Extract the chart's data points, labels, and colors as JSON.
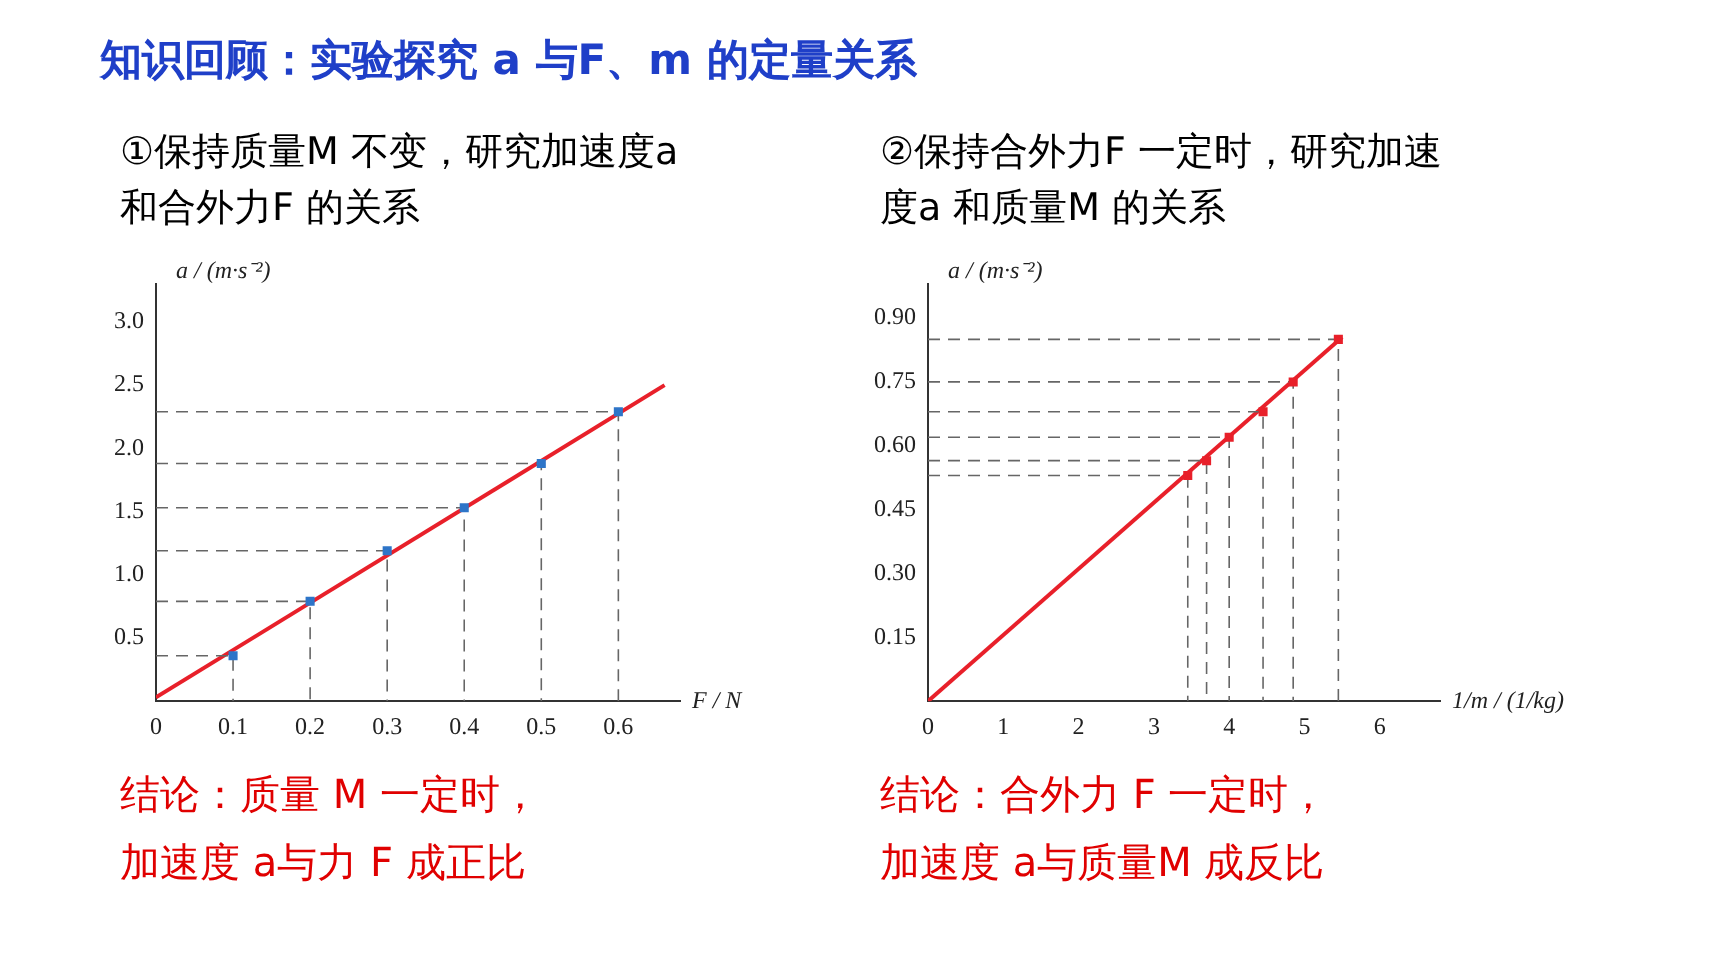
{
  "chart_data": [
    {
      "type": "scatter",
      "title": "知识回顾：实验探究 a 与F、m 的定量关系",
      "subtitle": "①保持质量M 不变，研究加速度a 和合外力F 的关系",
      "xlabel": "F / N",
      "ylabel": "a / (m·s⁻²)",
      "xlim": [
        0,
        0.68
      ],
      "ylim": [
        0,
        3.3
      ],
      "xticks": [
        0,
        0.1,
        0.2,
        0.3,
        0.4,
        0.5,
        0.6
      ],
      "yticks": [
        {
          "value": 0.5,
          "label": "0.5"
        },
        {
          "value": 1,
          "label": "1.0"
        },
        {
          "value": 1.5,
          "label": "1.5"
        },
        {
          "value": 2,
          "label": "2.0"
        },
        {
          "value": 2.5,
          "label": "2.5"
        },
        {
          "value": 3,
          "label": "3.0"
        }
      ],
      "grid": false,
      "legend": false,
      "marker": "square",
      "series": [
        {
          "type": "line",
          "color": "#666666",
          "marker": "none",
          "line_style": "dashed",
          "x": [
            0,
            0.1,
            0.1
          ],
          "values": [
            0.36,
            0.36,
            0
          ]
        },
        {
          "type": "line",
          "color": "#666666",
          "marker": "none",
          "line_style": "dashed",
          "x": [
            0,
            0.2,
            0.2
          ],
          "values": [
            0.79,
            0.79,
            0
          ]
        },
        {
          "type": "line",
          "color": "#666666",
          "marker": "none",
          "line_style": "dashed",
          "x": [
            0,
            0.3,
            0.3
          ],
          "values": [
            1.19,
            1.19,
            0
          ]
        },
        {
          "type": "line",
          "color": "#666666",
          "marker": "none",
          "line_style": "dashed",
          "x": [
            0,
            0.4,
            0.4
          ],
          "values": [
            1.53,
            1.53,
            0
          ]
        },
        {
          "type": "line",
          "color": "#666666",
          "marker": "none",
          "line_style": "dashed",
          "x": [
            0,
            0.5,
            0.5
          ],
          "values": [
            1.88,
            1.88,
            0
          ]
        },
        {
          "type": "line",
          "color": "#666666",
          "marker": "none",
          "line_style": "dashed",
          "x": [
            0,
            0.6,
            0.6
          ],
          "values": [
            2.29,
            2.29,
            0
          ]
        },
        {
          "type": "scatter",
          "color": "#2e75c8",
          "x": [
            0.1,
            0.2,
            0.3,
            0.4,
            0.5,
            0.6
          ],
          "values": [
            0.36,
            0.79,
            1.19,
            1.53,
            1.88,
            2.29
          ]
        },
        {
          "type": "line",
          "color": "#e8202a",
          "marker": "none",
          "x": [
            0,
            0.66
          ],
          "values": [
            0.03,
            2.5
          ]
        }
      ],
      "annotations": [
        "结论：质量 M 一定时，",
        "加速度 a与力 F 成正比"
      ]
    },
    {
      "type": "scatter",
      "subtitle": "②保持合外力F 一定时，研究加速度a 和质量M 的关系",
      "xlabel": "1/m / (1/kg)",
      "ylabel": "a / (m·s⁻²)",
      "xlim": [
        0,
        6.8
      ],
      "ylim": [
        0,
        0.98
      ],
      "xticks": [
        0,
        1,
        2,
        3,
        4,
        5,
        6
      ],
      "yticks": [
        {
          "value": 0.15,
          "label": "0.15"
        },
        {
          "value": 0.3,
          "label": "0.30"
        },
        {
          "value": 0.45,
          "label": "0.45"
        },
        {
          "value": 0.6,
          "label": "0.60"
        },
        {
          "value": 0.75,
          "label": "0.75"
        },
        {
          "value": 0.9,
          "label": "0.90"
        }
      ],
      "grid": false,
      "legend": false,
      "marker": "square",
      "series": [
        {
          "type": "line",
          "color": "#666666",
          "marker": "none",
          "line_style": "dashed",
          "x": [
            0,
            3.45,
            3.45
          ],
          "values": [
            0.53,
            0.53,
            0
          ]
        },
        {
          "type": "line",
          "color": "#666666",
          "marker": "none",
          "line_style": "dashed",
          "x": [
            0,
            3.7,
            3.7
          ],
          "values": [
            0.565,
            0.565,
            0
          ]
        },
        {
          "type": "line",
          "color": "#666666",
          "marker": "none",
          "line_style": "dashed",
          "x": [
            0,
            4.0,
            4.0
          ],
          "values": [
            0.62,
            0.62,
            0
          ]
        },
        {
          "type": "line",
          "color": "#666666",
          "marker": "none",
          "line_style": "dashed",
          "x": [
            0,
            4.45,
            4.45
          ],
          "values": [
            0.68,
            0.68,
            0
          ]
        },
        {
          "type": "line",
          "color": "#666666",
          "marker": "none",
          "line_style": "dashed",
          "x": [
            0,
            4.85,
            4.85
          ],
          "values": [
            0.75,
            0.75,
            0
          ]
        },
        {
          "type": "line",
          "color": "#666666",
          "marker": "none",
          "line_style": "dashed",
          "x": [
            0,
            5.45,
            5.45
          ],
          "values": [
            0.85,
            0.85,
            0
          ]
        },
        {
          "type": "scatter",
          "color": "#e8202a",
          "x": [
            3.45,
            3.7,
            4.0,
            4.45,
            4.85,
            5.45
          ],
          "values": [
            0.53,
            0.565,
            0.62,
            0.68,
            0.75,
            0.85
          ]
        },
        {
          "type": "line",
          "color": "#e8202a",
          "marker": "none",
          "x": [
            0,
            5.5
          ],
          "values": [
            0,
            0.855
          ]
        }
      ],
      "annotations": [
        "结论：合外力 F 一定时，",
        "加速度 a与质量M 成反比"
      ]
    }
  ]
}
